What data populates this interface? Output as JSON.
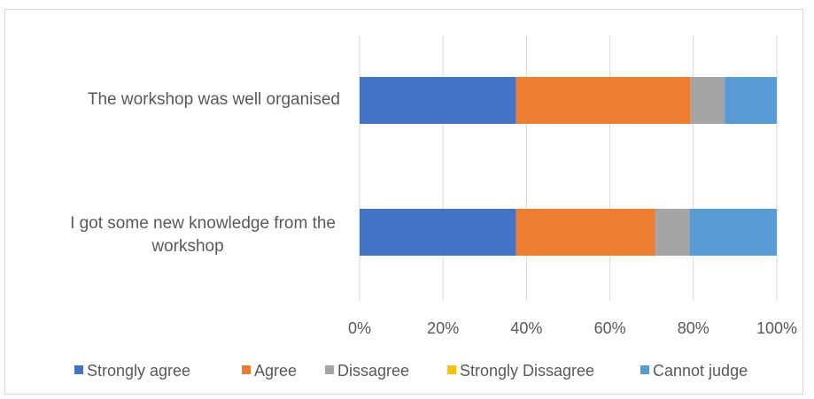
{
  "chart_data": {
    "type": "bar",
    "orientation": "horizontal",
    "stacked": "percent",
    "categories": [
      "The workshop was well organised",
      "I got some new knowledge from the workshop"
    ],
    "series": [
      {
        "name": "Strongly agree",
        "color": "#4472c4",
        "values": [
          37.5,
          37.5
        ]
      },
      {
        "name": "Agree",
        "color": "#ed7d31",
        "values": [
          41.7,
          33.3
        ]
      },
      {
        "name": "Dissagree",
        "color": "#a5a5a5",
        "values": [
          8.3,
          8.3
        ]
      },
      {
        "name": "Strongly Dissagree",
        "color": "#ffc000",
        "values": [
          0,
          0
        ]
      },
      {
        "name": "Cannot judge",
        "color": "#5b9bd5",
        "values": [
          12.5,
          20.9
        ]
      }
    ],
    "xticks": [
      "0%",
      "20%",
      "40%",
      "60%",
      "80%",
      "100%"
    ],
    "xlim": [
      0,
      100
    ],
    "grid": true,
    "legend": "bottom",
    "title": "",
    "xlabel": "",
    "ylabel": ""
  }
}
